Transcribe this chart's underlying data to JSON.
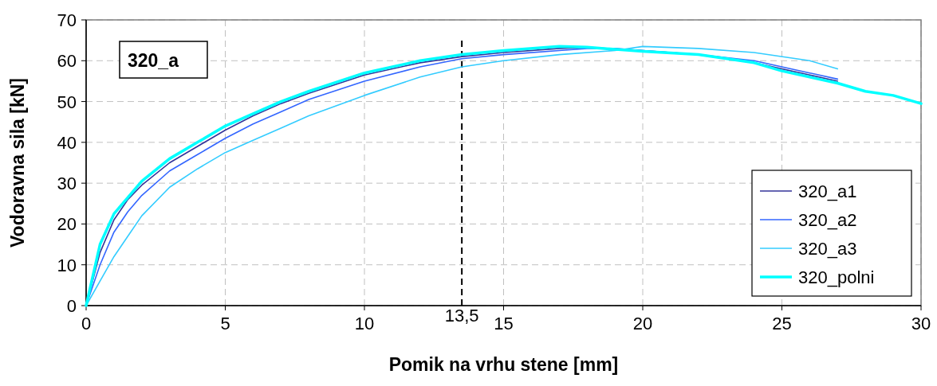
{
  "chart_data": {
    "type": "line",
    "xlabel": "Pomik na vrhu stene [mm]",
    "ylabel": "Vodoravna sila [kN]",
    "annotations": [
      "320_a"
    ],
    "xlim": [
      0,
      30
    ],
    "xticks": [
      0,
      5,
      10,
      15,
      20,
      25,
      30
    ],
    "ylim": [
      0,
      70
    ],
    "yticks": [
      0,
      10,
      20,
      30,
      40,
      50,
      60,
      70
    ],
    "grid": true,
    "legend": "bottom right",
    "marker": "none",
    "line_style": "solid",
    "ref_lines": [
      {
        "axis": "x",
        "value": 13.5,
        "label": "13,5",
        "color": "#000000",
        "line_style": "dashed"
      }
    ],
    "series": [
      {
        "name": "320_a1",
        "color": "#333399",
        "x": [
          0,
          0.5,
          1,
          1.5,
          2,
          3,
          4,
          5,
          6,
          7,
          8,
          10,
          12,
          13.5,
          15,
          17,
          18,
          20,
          22,
          24,
          26,
          27
        ],
        "values": [
          0,
          13,
          21,
          26,
          29.5,
          35,
          39,
          43,
          46.5,
          49.5,
          52,
          56.5,
          59.5,
          61,
          62,
          63,
          63.3,
          62.5,
          61.5,
          59.5,
          56.5,
          55
        ]
      },
      {
        "name": "320_a2",
        "color": "#3366ff",
        "x": [
          0,
          0.5,
          1,
          1.5,
          2,
          3,
          4,
          5,
          6,
          7,
          8,
          10,
          12,
          13.5,
          15,
          17,
          18,
          19,
          20,
          22,
          24,
          26,
          27
        ],
        "values": [
          0,
          10,
          18,
          23,
          27,
          33,
          37,
          41,
          44.5,
          47.5,
          50.5,
          55,
          58.5,
          60.5,
          61.5,
          62.5,
          63,
          63,
          62.5,
          61.5,
          60,
          57,
          55.5
        ]
      },
      {
        "name": "320_a3",
        "color": "#33ccff",
        "x": [
          0,
          0.5,
          1,
          1.5,
          2,
          3,
          4,
          5,
          6,
          7,
          8,
          10,
          12,
          13.5,
          15,
          17,
          19,
          20,
          22,
          24,
          26,
          27
        ],
        "values": [
          0,
          6,
          12,
          17,
          22,
          29,
          33.5,
          37.5,
          40.5,
          43.5,
          46.5,
          51.5,
          56,
          58.5,
          60,
          61.5,
          62.5,
          63.5,
          63,
          62,
          60,
          58
        ]
      },
      {
        "name": "320_polni",
        "color": "#00ffff",
        "x": [
          0,
          0.5,
          1,
          1.5,
          2,
          3,
          4,
          5,
          6,
          7,
          8,
          10,
          12,
          13.5,
          15,
          17,
          18,
          20,
          22,
          24,
          25,
          26,
          27,
          28,
          29,
          30
        ],
        "values": [
          0,
          15,
          22.5,
          26.5,
          30.5,
          36,
          40,
          44,
          47,
          50,
          52.5,
          57,
          60,
          61.5,
          62.5,
          63.5,
          63.3,
          62.3,
          61.5,
          59.5,
          57.5,
          56,
          54.5,
          52.5,
          51.5,
          49.5
        ]
      }
    ]
  }
}
